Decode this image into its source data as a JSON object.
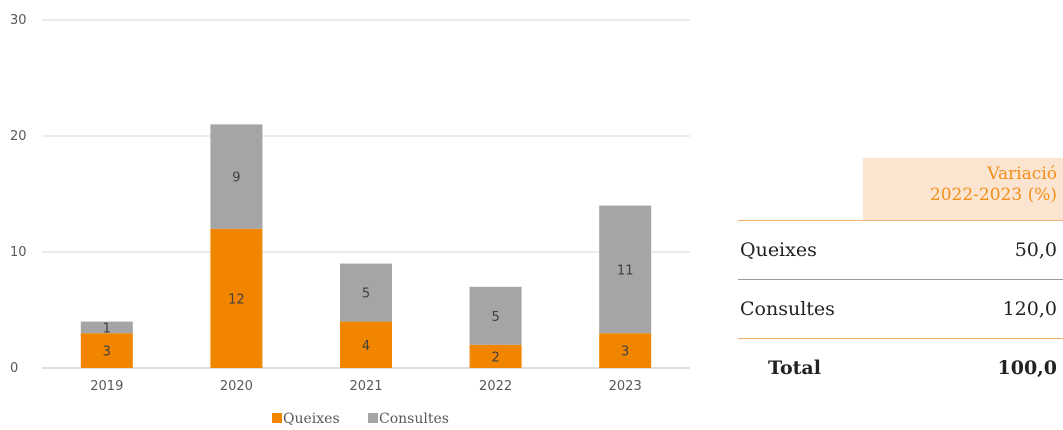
{
  "chart_data": {
    "type": "bar",
    "stacked": true,
    "categories": [
      "2019",
      "2020",
      "2021",
      "2022",
      "2023"
    ],
    "series": [
      {
        "name": "Queixes",
        "values": [
          3,
          12,
          4,
          2,
          3
        ],
        "color": "#f28500"
      },
      {
        "name": "Consultes",
        "values": [
          1,
          9,
          5,
          5,
          11
        ],
        "color": "#a5a5a5"
      }
    ],
    "ylim": [
      0,
      30
    ],
    "yticks": [
      "0",
      "10",
      "20",
      "30"
    ],
    "grid": true,
    "legend": "bottom",
    "data_labels": true
  },
  "table": {
    "header_line1": "Variació",
    "header_line2": "2022-2023 (%)",
    "rows": [
      {
        "label": "Queixes",
        "value": "50,0"
      },
      {
        "label": "Consultes",
        "value": "120,0"
      }
    ],
    "total": {
      "label": "Total",
      "value": "100,0"
    }
  }
}
